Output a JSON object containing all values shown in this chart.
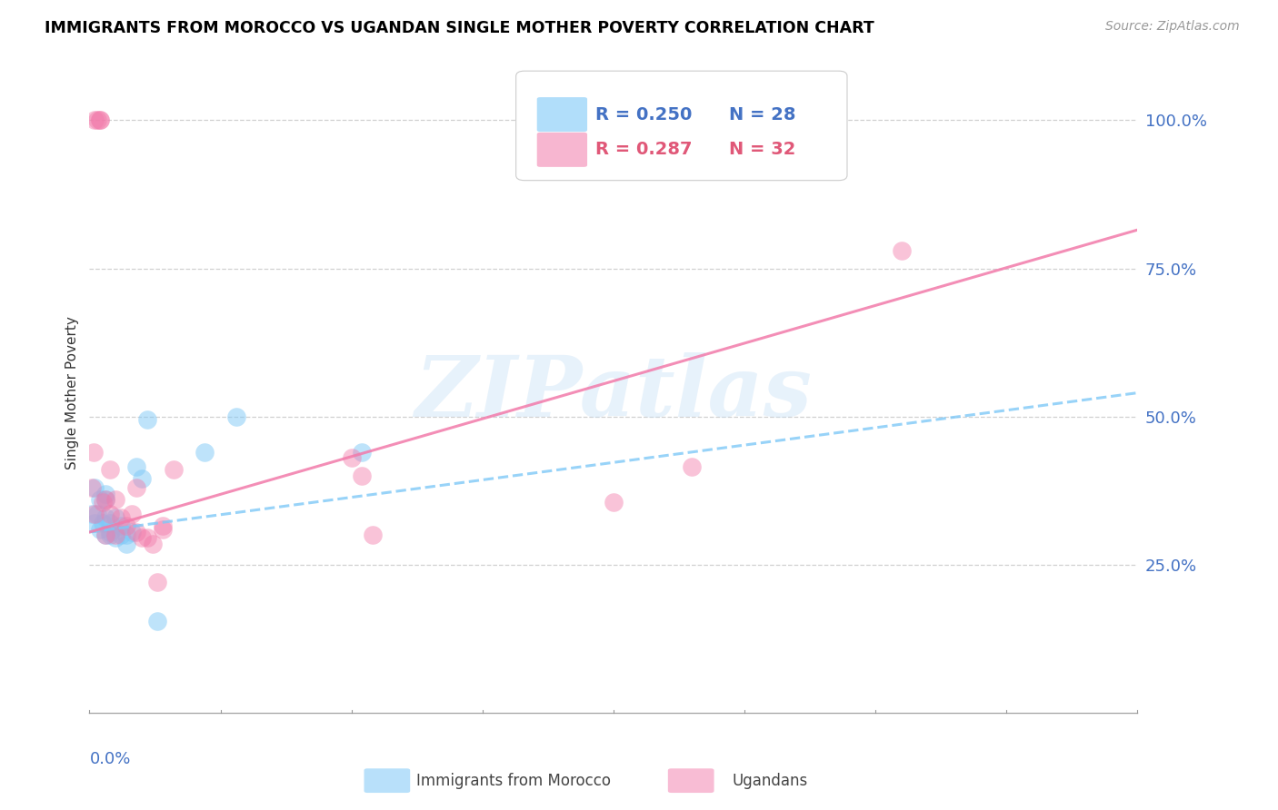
{
  "title": "IMMIGRANTS FROM MOROCCO VS UGANDAN SINGLE MOTHER POVERTY CORRELATION CHART",
  "source": "Source: ZipAtlas.com",
  "ylabel": "Single Mother Poverty",
  "ytick_labels": [
    "100.0%",
    "75.0%",
    "50.0%",
    "25.0%"
  ],
  "ytick_values": [
    1.0,
    0.75,
    0.5,
    0.25
  ],
  "xmin": 0.0,
  "xmax": 0.2,
  "ymin": 0.0,
  "ymax": 1.08,
  "color_blue": "#7ec8f7",
  "color_pink": "#f27aaa",
  "color_blue_line": "#7ec8f7",
  "color_pink_line": "#f27aaa",
  "watermark": "ZIPatlas",
  "blue_points_x": [
    0.0005,
    0.001,
    0.001,
    0.0015,
    0.002,
    0.002,
    0.0025,
    0.003,
    0.003,
    0.003,
    0.003,
    0.004,
    0.004,
    0.004,
    0.005,
    0.005,
    0.006,
    0.006,
    0.007,
    0.007,
    0.008,
    0.009,
    0.01,
    0.011,
    0.013,
    0.022,
    0.028,
    0.052
  ],
  "blue_points_y": [
    0.335,
    0.32,
    0.38,
    0.335,
    0.31,
    0.36,
    0.32,
    0.3,
    0.33,
    0.36,
    0.37,
    0.305,
    0.32,
    0.3,
    0.295,
    0.33,
    0.3,
    0.315,
    0.3,
    0.285,
    0.305,
    0.415,
    0.395,
    0.495,
    0.155,
    0.44,
    0.5,
    0.44
  ],
  "pink_points_x": [
    0.0005,
    0.0008,
    0.001,
    0.001,
    0.0015,
    0.002,
    0.002,
    0.0025,
    0.003,
    0.003,
    0.004,
    0.004,
    0.005,
    0.005,
    0.006,
    0.007,
    0.008,
    0.009,
    0.009,
    0.01,
    0.011,
    0.012,
    0.013,
    0.014,
    0.014,
    0.016,
    0.05,
    0.052,
    0.054,
    0.1,
    0.115,
    0.155
  ],
  "pink_points_y": [
    0.38,
    0.44,
    0.335,
    1.0,
    1.0,
    1.0,
    1.0,
    0.355,
    0.3,
    0.36,
    0.335,
    0.41,
    0.36,
    0.3,
    0.33,
    0.315,
    0.335,
    0.305,
    0.38,
    0.295,
    0.295,
    0.285,
    0.22,
    0.315,
    0.31,
    0.41,
    0.43,
    0.4,
    0.3,
    0.355,
    0.415,
    0.78
  ],
  "blue_trend_x": [
    0.0,
    0.2
  ],
  "blue_trend_y": [
    0.305,
    0.54
  ],
  "pink_trend_x": [
    0.0,
    0.2
  ],
  "pink_trend_y": [
    0.305,
    0.815
  ],
  "legend_r1_label": "R = 0.250",
  "legend_n1_label": "N = 28",
  "legend_r2_label": "R = 0.287",
  "legend_n2_label": "N = 32",
  "legend1_color": "#4472c4",
  "legend2_color": "#e05878"
}
